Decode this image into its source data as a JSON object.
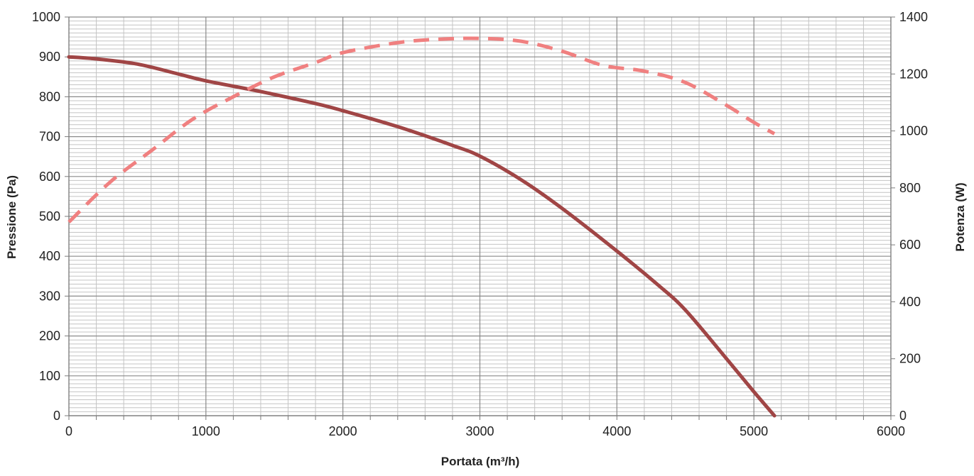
{
  "chart_data": {
    "type": "line",
    "title": "",
    "xlabel": "Portata (m³/h)",
    "ylabel": "Pressione (Pa)",
    "y2label": "Potenza (W)",
    "xlim": [
      0,
      6000
    ],
    "ylim": [
      0,
      1000
    ],
    "y2lim": [
      0,
      1400
    ],
    "x_ticks": [
      0,
      1000,
      2000,
      3000,
      4000,
      5000,
      6000
    ],
    "y_ticks": [
      0,
      100,
      200,
      300,
      400,
      500,
      600,
      700,
      800,
      900,
      1000
    ],
    "y2_ticks": [
      0,
      200,
      400,
      600,
      800,
      1000,
      1200,
      1400
    ],
    "grid": true,
    "legend": "none",
    "series": [
      {
        "axis": "left",
        "style": "solid",
        "color": "#a04545",
        "x": [
          0,
          200,
          500,
          800,
          1000,
          1400,
          1800,
          2000,
          2400,
          2800,
          3000,
          3300,
          3600,
          4000,
          4300,
          4500,
          4800,
          5000,
          5150
        ],
        "y": [
          900,
          895,
          882,
          857,
          840,
          813,
          783,
          765,
          725,
          678,
          651,
          592,
          520,
          413,
          328,
          265,
          143,
          60,
          0
        ]
      },
      {
        "axis": "right",
        "style": "dashed",
        "color": "#f08080",
        "x": [
          0,
          300,
          600,
          900,
          1200,
          1500,
          1800,
          2000,
          2400,
          2700,
          3000,
          3300,
          3600,
          3900,
          4200,
          4500,
          4800,
          5000,
          5150
        ],
        "y": [
          680,
          820,
          930,
          1040,
          1120,
          1190,
          1240,
          1275,
          1310,
          1322,
          1325,
          1315,
          1280,
          1230,
          1210,
          1170,
          1090,
          1030,
          990
        ]
      }
    ]
  }
}
